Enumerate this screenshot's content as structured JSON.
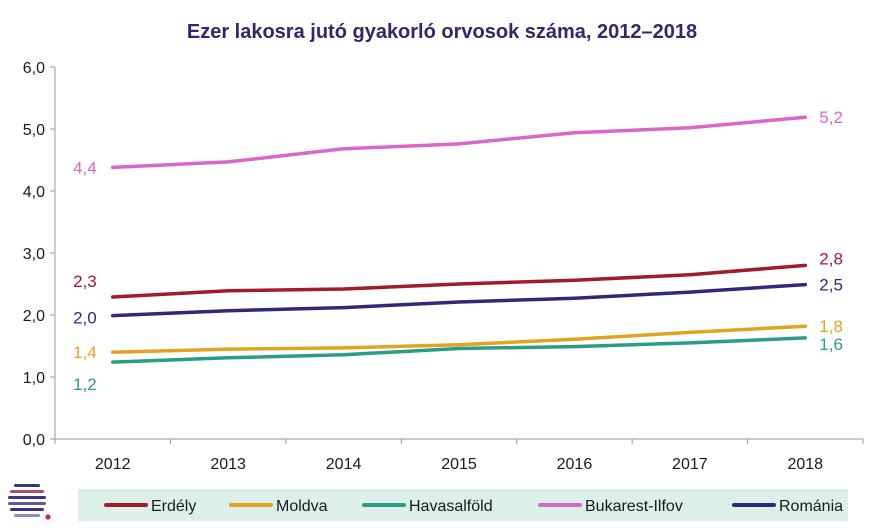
{
  "chart_data": {
    "type": "line",
    "title": "Ezer lakosra jutó gyakorló orvosok száma, 2012–2018",
    "x": [
      "2012",
      "2013",
      "2014",
      "2015",
      "2016",
      "2017",
      "2018"
    ],
    "ylim": [
      0,
      6
    ],
    "yticks": [
      "0,0",
      "1,0",
      "2,0",
      "3,0",
      "4,0",
      "5,0",
      "6,0"
    ],
    "grid": false,
    "legend_position": "bottom",
    "series": [
      {
        "name": "Erdély",
        "color": "#a31a2c",
        "values": [
          2.29,
          2.39,
          2.42,
          2.5,
          2.56,
          2.65,
          2.8
        ],
        "label_start": "2,3",
        "label_end": "2,8"
      },
      {
        "name": "Moldva",
        "color": "#e0a420",
        "values": [
          1.4,
          1.45,
          1.47,
          1.52,
          1.61,
          1.72,
          1.82
        ],
        "label_start": "1,4",
        "label_end": "1,8"
      },
      {
        "name": "Havasalföld",
        "color": "#2a9d86",
        "values": [
          1.24,
          1.31,
          1.36,
          1.46,
          1.49,
          1.55,
          1.63
        ],
        "label_start": "1,2",
        "label_end": "1,6"
      },
      {
        "name": "Bukarest-Ilfov",
        "color": "#d966c8",
        "values": [
          4.38,
          4.47,
          4.68,
          4.76,
          4.94,
          5.02,
          5.19
        ],
        "label_start": "4,4",
        "label_end": "5,2"
      },
      {
        "name": "Románia",
        "color": "#2c2b78",
        "values": [
          1.99,
          2.07,
          2.12,
          2.21,
          2.27,
          2.37,
          2.49
        ],
        "label_start": "2,0",
        "label_end": "2,5"
      }
    ]
  },
  "legend_box_color": "#dcefe9",
  "logo_icon": "striped-circle-logo"
}
